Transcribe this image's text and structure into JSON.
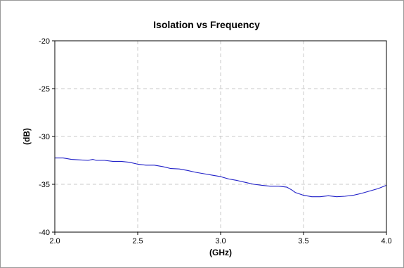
{
  "chart_data": {
    "type": "line",
    "title": "Isolation vs Frequency",
    "xlabel": "(GHz)",
    "ylabel": "(dB)",
    "xlim": [
      2.0,
      4.0
    ],
    "ylim": [
      -40,
      -20
    ],
    "xticks": [
      2.0,
      2.5,
      3.0,
      3.5,
      4.0
    ],
    "xtick_labels": [
      "2.0",
      "2.5",
      "3.0",
      "3.5",
      "4.0"
    ],
    "yticks": [
      -20,
      -25,
      -30,
      -35,
      -40
    ],
    "ytick_labels": [
      "-20",
      "-25",
      "-30",
      "-35",
      "-40"
    ],
    "grid": true,
    "grid_style": "dashed",
    "legend": "none",
    "colors": {
      "series": "#1f1fc8",
      "grid": "#c8c8c8",
      "axes": "#000000",
      "figure_border": "#9a9a9a"
    },
    "series": [
      {
        "color": "#1f1fc8",
        "x": [
          2.0,
          2.05,
          2.1,
          2.15,
          2.2,
          2.23,
          2.25,
          2.3,
          2.35,
          2.4,
          2.45,
          2.5,
          2.55,
          2.6,
          2.65,
          2.7,
          2.75,
          2.8,
          2.85,
          2.9,
          2.95,
          3.0,
          3.05,
          3.1,
          3.15,
          3.2,
          3.25,
          3.3,
          3.35,
          3.4,
          3.43,
          3.45,
          3.5,
          3.55,
          3.6,
          3.65,
          3.7,
          3.75,
          3.8,
          3.85,
          3.9,
          3.95,
          4.0
        ],
        "y": [
          -32.25,
          -32.25,
          -32.4,
          -32.45,
          -32.5,
          -32.4,
          -32.5,
          -32.5,
          -32.6,
          -32.6,
          -32.7,
          -32.9,
          -33.0,
          -33.0,
          -33.15,
          -33.35,
          -33.4,
          -33.55,
          -33.75,
          -33.9,
          -34.05,
          -34.2,
          -34.45,
          -34.6,
          -34.8,
          -35.0,
          -35.1,
          -35.2,
          -35.2,
          -35.3,
          -35.6,
          -35.85,
          -36.15,
          -36.3,
          -36.3,
          -36.2,
          -36.3,
          -36.25,
          -36.15,
          -35.95,
          -35.7,
          -35.45,
          -35.1
        ]
      }
    ]
  }
}
